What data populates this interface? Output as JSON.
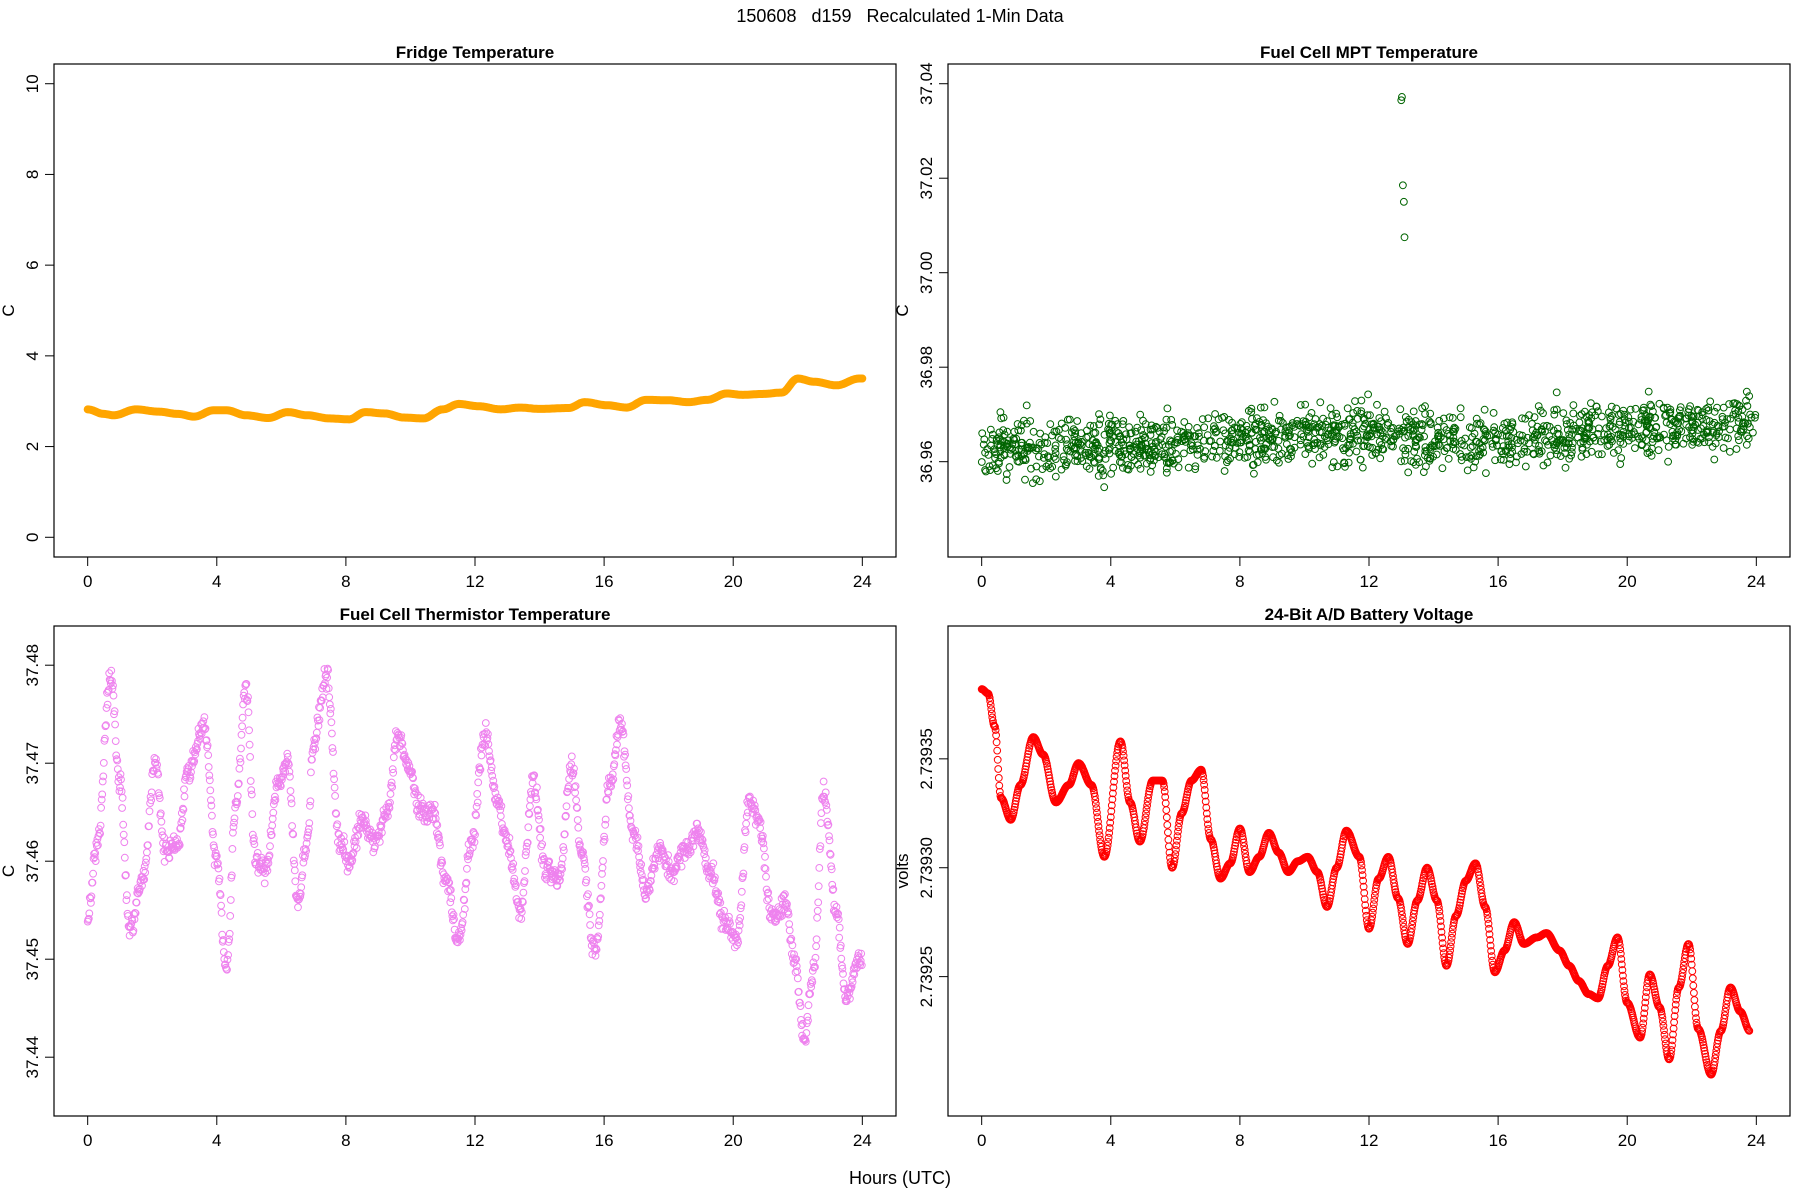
{
  "page_title": "150608   d159   Recalculated 1-Min Data",
  "global_xlabel": "Hours (UTC)",
  "chart_data": [
    {
      "type": "line",
      "title": "Fridge Temperature",
      "ylabel": "C",
      "xlabel": "",
      "xlim": [
        0,
        24
      ],
      "ylim": [
        0,
        10
      ],
      "xticks": [
        0,
        4,
        8,
        12,
        16,
        20,
        24
      ],
      "yticks": [
        0,
        2,
        4,
        6,
        8,
        10
      ],
      "ytick_labels": [
        "0",
        "2",
        "4",
        "6",
        "8",
        "10"
      ],
      "color": "#ffa500",
      "marker": "thick-line",
      "x": [
        0,
        0.5,
        0.8,
        1.5,
        2.2,
        2.8,
        3.3,
        3.9,
        4.3,
        4.9,
        5.6,
        6.2,
        6.8,
        7.5,
        8.1,
        8.6,
        9.2,
        9.8,
        10.4,
        11.0,
        11.5,
        12.1,
        12.8,
        13.4,
        14.0,
        14.9,
        15.4,
        16.1,
        16.7,
        17.3,
        18.0,
        18.6,
        19.2,
        19.8,
        20.3,
        20.9,
        21.5,
        22.0,
        22.5,
        23.2,
        23.9
      ],
      "y": [
        2.82,
        2.72,
        2.69,
        2.82,
        2.77,
        2.72,
        2.66,
        2.8,
        2.8,
        2.69,
        2.63,
        2.76,
        2.69,
        2.62,
        2.6,
        2.76,
        2.73,
        2.64,
        2.62,
        2.82,
        2.94,
        2.89,
        2.82,
        2.86,
        2.83,
        2.85,
        2.98,
        2.91,
        2.86,
        3.03,
        3.02,
        2.98,
        3.03,
        3.17,
        3.14,
        3.16,
        3.19,
        3.5,
        3.43,
        3.35,
        3.5
      ]
    },
    {
      "type": "scatter",
      "title": "Fuel Cell MPT Temperature",
      "ylabel": "C",
      "xlabel": "",
      "xlim": [
        0,
        24
      ],
      "ylim": [
        36.944,
        37.04
      ],
      "xticks": [
        0,
        4,
        8,
        12,
        16,
        20,
        24
      ],
      "yticks": [
        36.96,
        36.98,
        37.0,
        37.02,
        37.04
      ],
      "ytick_labels": [
        "36.96",
        "36.98",
        "37.00",
        "37.02",
        "37.04"
      ],
      "color": "#006400",
      "marker": "open-circle",
      "trend": {
        "x": [
          0,
          4,
          8,
          12,
          16,
          20,
          24
        ],
        "y": [
          36.963,
          36.963,
          36.965,
          36.966,
          36.964,
          36.967,
          36.968
        ]
      },
      "noise": 0.011,
      "outliers": {
        "x": [
          13.0,
          13.02,
          13.05,
          13.08,
          13.1
        ],
        "y": [
          37.0365,
          37.0372,
          37.0185,
          37.015,
          37.0075
        ]
      }
    },
    {
      "type": "scatter",
      "title": "Fuel Cell Thermistor Temperature",
      "ylabel": "C",
      "xlabel": "",
      "xlim": [
        0,
        24
      ],
      "ylim": [
        37.436,
        37.482
      ],
      "xticks": [
        0,
        4,
        8,
        12,
        16,
        20,
        24
      ],
      "yticks": [
        37.44,
        37.45,
        37.46,
        37.47,
        37.48
      ],
      "ytick_labels": [
        "37.44",
        "37.45",
        "37.46",
        "37.47",
        "37.48"
      ],
      "color": "#ee82ee",
      "marker": "open-circle",
      "x": [
        0.0,
        0.3,
        0.7,
        1.0,
        1.3,
        1.7,
        2.1,
        2.4,
        2.8,
        3.1,
        3.6,
        4.0,
        4.3,
        4.6,
        4.9,
        5.2,
        5.5,
        5.9,
        6.2,
        6.5,
        6.8,
        7.0,
        7.4,
        7.8,
        8.1,
        8.5,
        8.9,
        9.3,
        9.6,
        10.0,
        10.3,
        10.7,
        11.1,
        11.5,
        11.9,
        12.3,
        12.7,
        13.0,
        13.4,
        13.8,
        14.2,
        14.6,
        15.0,
        15.3,
        15.7,
        16.2,
        16.5,
        16.9,
        17.3,
        17.7,
        18.1,
        18.5,
        18.9,
        19.3,
        19.7,
        20.1,
        20.5,
        20.8,
        21.2,
        21.6,
        21.9,
        22.2,
        22.5,
        22.8,
        23.2,
        23.5,
        23.9
      ],
      "y": [
        37.454,
        37.462,
        37.479,
        37.468,
        37.453,
        37.458,
        37.47,
        37.461,
        37.462,
        37.469,
        37.474,
        37.46,
        37.449,
        37.466,
        37.478,
        37.46,
        37.459,
        37.468,
        37.47,
        37.456,
        37.462,
        37.472,
        37.479,
        37.462,
        37.46,
        37.464,
        37.462,
        37.465,
        37.473,
        37.469,
        37.465,
        37.465,
        37.458,
        37.452,
        37.462,
        37.473,
        37.466,
        37.462,
        37.455,
        37.468,
        37.459,
        37.458,
        37.47,
        37.461,
        37.451,
        37.468,
        37.474,
        37.463,
        37.457,
        37.461,
        37.459,
        37.461,
        37.463,
        37.459,
        37.454,
        37.452,
        37.466,
        37.464,
        37.454,
        37.456,
        37.45,
        37.442,
        37.449,
        37.467,
        37.455,
        37.446,
        37.45
      ],
      "noise": 0.0018
    },
    {
      "type": "scatter",
      "title": "24-Bit A/D Battery Voltage",
      "ylabel": "volts",
      "xlabel": "",
      "xlim": [
        0,
        24
      ],
      "ylim": [
        2.739195,
        2.739402
      ],
      "xticks": [
        0,
        4,
        8,
        12,
        16,
        20,
        24
      ],
      "yticks": [
        2.73925,
        2.7393,
        2.73935
      ],
      "ytick_labels": [
        "2.73925",
        "2.73930",
        "2.73935"
      ],
      "color": "#ff0000",
      "marker": "open-circle",
      "x": [
        0.0,
        0.2,
        0.4,
        0.6,
        0.9,
        1.2,
        1.6,
        1.9,
        2.3,
        2.7,
        3.0,
        3.4,
        3.8,
        4.3,
        4.6,
        4.9,
        5.3,
        5.6,
        5.9,
        6.2,
        6.5,
        6.8,
        7.1,
        7.4,
        7.7,
        8.0,
        8.3,
        8.6,
        8.9,
        9.2,
        9.5,
        9.8,
        10.1,
        10.4,
        10.7,
        11.0,
        11.3,
        11.7,
        12.0,
        12.3,
        12.6,
        12.9,
        13.2,
        13.5,
        13.8,
        14.1,
        14.4,
        14.7,
        15.0,
        15.3,
        15.6,
        15.9,
        16.2,
        16.5,
        16.8,
        17.2,
        17.5,
        17.9,
        18.2,
        18.5,
        18.8,
        19.1,
        19.4,
        19.7,
        20.0,
        20.4,
        20.7,
        21.0,
        21.3,
        21.6,
        21.9,
        22.2,
        22.6,
        22.9,
        23.2,
        23.5,
        23.8
      ],
      "y": [
        2.739382,
        2.73938,
        2.739365,
        2.739332,
        2.739322,
        2.739338,
        2.73936,
        2.739352,
        2.73933,
        2.739338,
        2.739348,
        2.739338,
        2.739305,
        2.739358,
        2.73933,
        2.739312,
        2.73934,
        2.73934,
        2.7393,
        2.739325,
        2.73934,
        2.739345,
        2.739313,
        2.739295,
        2.739302,
        2.739318,
        2.739298,
        2.739305,
        2.739316,
        2.739307,
        2.739298,
        2.739303,
        2.739305,
        2.739298,
        2.739282,
        2.7393,
        2.739317,
        2.739305,
        2.739272,
        2.739295,
        2.739305,
        2.739286,
        2.739265,
        2.739285,
        2.7393,
        2.739285,
        2.739255,
        2.739278,
        2.739294,
        2.739302,
        2.739282,
        2.739252,
        2.739262,
        2.739275,
        2.739265,
        2.739268,
        2.73927,
        2.739262,
        2.739255,
        2.739248,
        2.739242,
        2.73924,
        2.739255,
        2.739268,
        2.739238,
        2.739222,
        2.739251,
        2.739236,
        2.739212,
        2.739245,
        2.739265,
        2.739226,
        2.739205,
        2.739225,
        2.739245,
        2.739234,
        2.739225
      ]
    }
  ]
}
